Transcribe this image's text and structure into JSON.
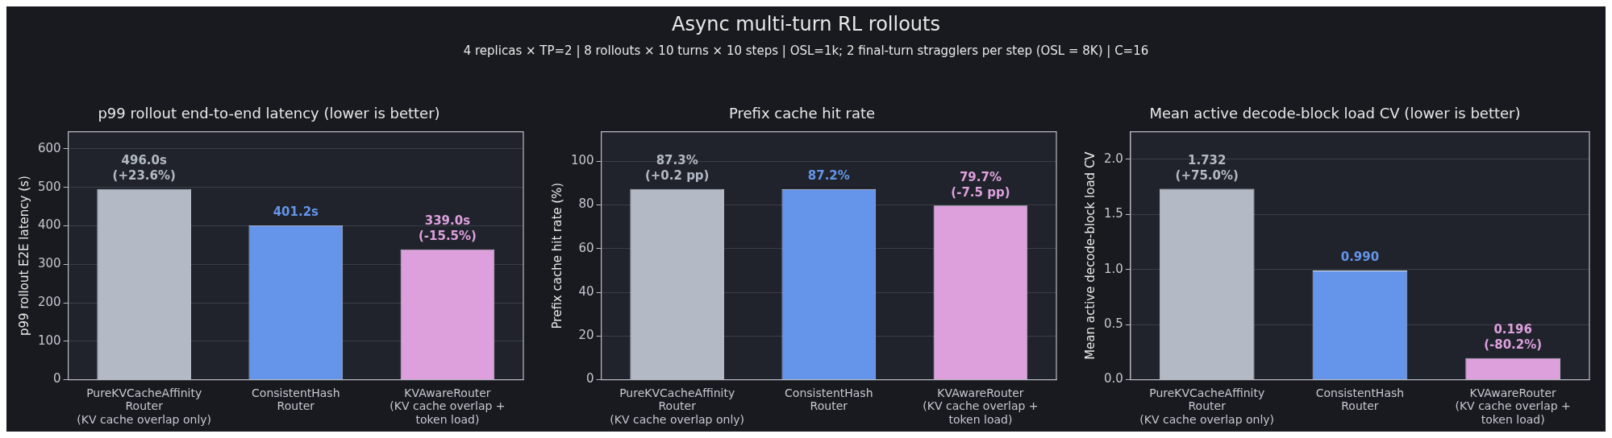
{
  "chart_data": [
    {
      "type": "other",
      "title": "Async multi-turn RL rollouts",
      "subtitle": "4 replicas × TP=2 | 8 rollouts × 10 turns × 10 steps | OSL=1k; 2 final-turn stragglers per step (OSL = 8K) | C=16"
    },
    {
      "type": "bar",
      "title": "p99 rollout end-to-end latency (lower is better)",
      "ylabel": "p99 rollout E2E latency (s)",
      "categories": [
        "PureKVCacheAffinity\nRouter\n(KV cache overlap only)",
        "ConsistentHash\nRouter",
        "KVAwareRouter\n(KV cache overlap +\ntoken load)"
      ],
      "values": [
        496.0,
        401.2,
        339.0
      ],
      "colors": [
        "#b3bac5",
        "#6495ea",
        "#dda0dd"
      ],
      "value_labels": [
        "496.0s\n(+23.6%)",
        "401.2s",
        "339.0s\n(-15.5%)"
      ],
      "ylim": [
        0,
        644.8
      ],
      "yticks": [
        0,
        100,
        200,
        300,
        400,
        500,
        600
      ],
      "grid": "y"
    },
    {
      "type": "bar",
      "title": "Prefix cache hit rate",
      "ylabel": "Prefix cache hit rate (%)",
      "categories": [
        "PureKVCacheAffinity\nRouter\n(KV cache overlap only)",
        "ConsistentHash\nRouter",
        "KVAwareRouter\n(KV cache overlap +\ntoken load)"
      ],
      "values": [
        87.3,
        87.2,
        79.7
      ],
      "colors": [
        "#b3bac5",
        "#6495ea",
        "#dda0dd"
      ],
      "value_labels": [
        "87.3%\n(+0.2 pp)",
        "87.2%",
        "79.7%\n(-7.5 pp)"
      ],
      "ylim": [
        0,
        113.5
      ],
      "yticks": [
        0,
        20,
        40,
        60,
        80,
        100
      ],
      "grid": "y"
    },
    {
      "type": "bar",
      "title": "Mean active decode-block load CV (lower is better)",
      "ylabel": "Mean active decode-block load CV",
      "categories": [
        "PureKVCacheAffinity\nRouter\n(KV cache overlap only)",
        "ConsistentHash\nRouter",
        "KVAwareRouter\n(KV cache overlap +\ntoken load)"
      ],
      "values": [
        1.732,
        0.99,
        0.196
      ],
      "colors": [
        "#b3bac5",
        "#6495ea",
        "#dda0dd"
      ],
      "value_labels": [
        "1.732\n(+75.0%)",
        "0.990",
        "0.196\n(-80.2%)"
      ],
      "ylim": [
        0,
        2.25
      ],
      "yticks": [
        {
          "value": 0,
          "label": "0.0"
        },
        {
          "value": 0.5,
          "label": "0.5"
        },
        {
          "value": 1,
          "label": "1.0"
        },
        {
          "value": 1.5,
          "label": "1.5"
        },
        {
          "value": 2,
          "label": "2.0"
        }
      ],
      "grid": "y"
    }
  ]
}
